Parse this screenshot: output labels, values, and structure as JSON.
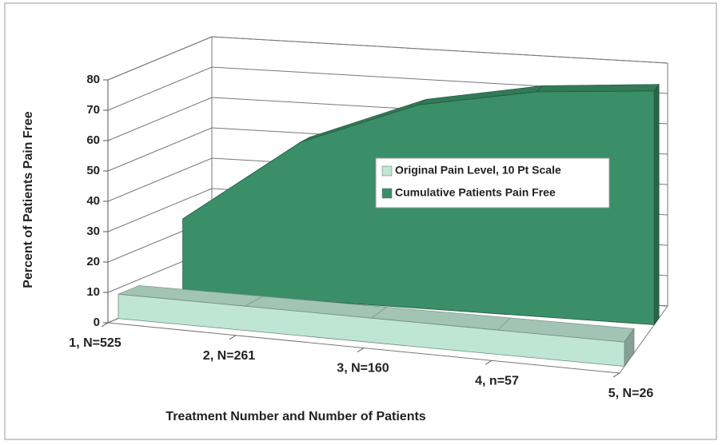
{
  "chart_data": {
    "type": "area3d",
    "categories": [
      "1, N=525",
      "2, N=261",
      "3, N=160",
      "4, n=57",
      "5, N=26"
    ],
    "series": [
      {
        "name": "Original Pain Level, 10 Pt Scale",
        "color": "#bfe6d2",
        "values": [
          8,
          8,
          8,
          8,
          8
        ]
      },
      {
        "name": "Cumulative Patients Pain Free",
        "color": "#3a8f68",
        "values": [
          24,
          52,
          67,
          74,
          77
        ]
      }
    ],
    "ylim": [
      0,
      80
    ],
    "yticks": [
      0,
      10,
      20,
      30,
      40,
      50,
      60,
      70,
      80
    ],
    "y_label": "Percent of Patients Pain Free",
    "x_label": "Treatment Number and Number of Patients",
    "grid": true
  }
}
